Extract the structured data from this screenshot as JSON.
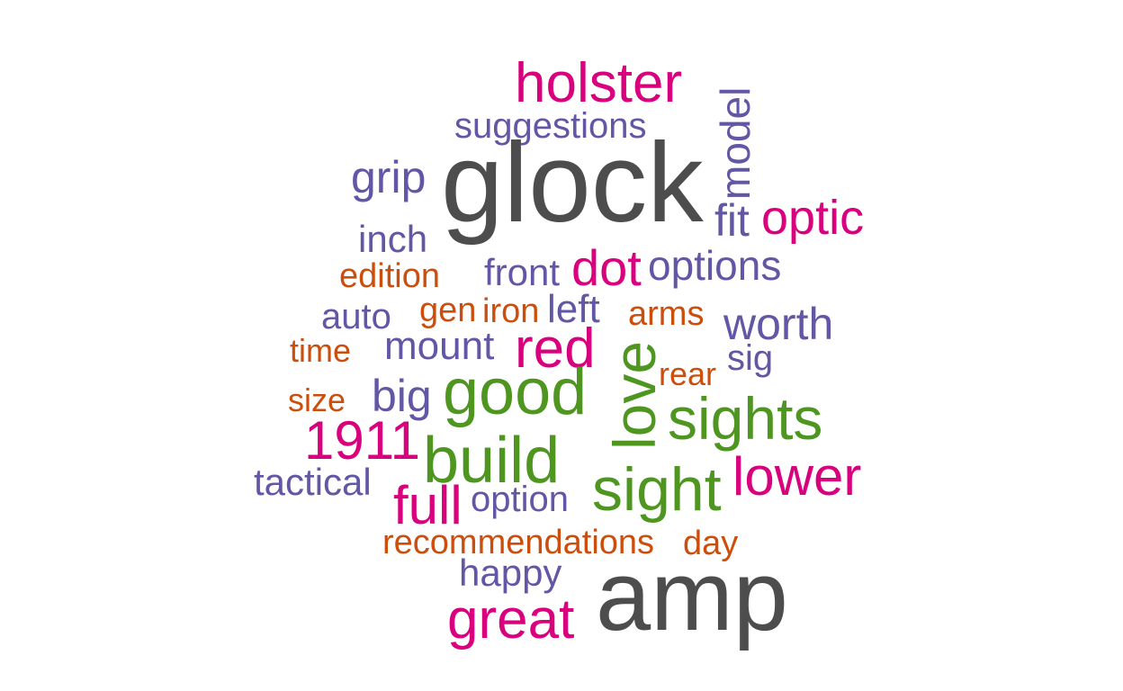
{
  "colors": {
    "gray": "#4d4d4d",
    "magenta": "#d9007e",
    "purple": "#6257a5",
    "orange": "#cc4e0c",
    "green": "#4e9620"
  },
  "words": {
    "holster": {
      "text": "holster",
      "color": "#d9007e"
    },
    "model": {
      "text": "model",
      "color": "#6257a5"
    },
    "suggestions": {
      "text": "suggestions",
      "color": "#6257a5"
    },
    "glock": {
      "text": "glock",
      "color": "#4d4d4d"
    },
    "grip": {
      "text": "grip",
      "color": "#6257a5"
    },
    "fit": {
      "text": "fit",
      "color": "#6257a5"
    },
    "optic": {
      "text": "optic",
      "color": "#d9007e"
    },
    "inch": {
      "text": "inch",
      "color": "#6257a5"
    },
    "edition": {
      "text": "edition",
      "color": "#cc4e0c"
    },
    "front": {
      "text": "front",
      "color": "#6257a5"
    },
    "dot": {
      "text": "dot",
      "color": "#d9007e"
    },
    "options": {
      "text": "options",
      "color": "#6257a5"
    },
    "auto": {
      "text": "auto",
      "color": "#6257a5"
    },
    "gen": {
      "text": "gen",
      "color": "#cc4e0c"
    },
    "iron": {
      "text": "iron",
      "color": "#cc4e0c"
    },
    "left": {
      "text": "left",
      "color": "#6257a5"
    },
    "arms": {
      "text": "arms",
      "color": "#cc4e0c"
    },
    "worth": {
      "text": "worth",
      "color": "#6257a5"
    },
    "time": {
      "text": "time",
      "color": "#cc4e0c"
    },
    "mount": {
      "text": "mount",
      "color": "#6257a5"
    },
    "red": {
      "text": "red",
      "color": "#d9007e"
    },
    "love": {
      "text": "love",
      "color": "#4e9620"
    },
    "sig": {
      "text": "sig",
      "color": "#6257a5"
    },
    "rear": {
      "text": "rear",
      "color": "#cc4e0c"
    },
    "size": {
      "text": "size",
      "color": "#cc4e0c"
    },
    "big": {
      "text": "big",
      "color": "#6257a5"
    },
    "good": {
      "text": "good",
      "color": "#4e9620"
    },
    "sights": {
      "text": "sights",
      "color": "#4e9620"
    },
    "n1911": {
      "text": "1911",
      "color": "#d9007e"
    },
    "build": {
      "text": "build",
      "color": "#4e9620"
    },
    "lower": {
      "text": "lower",
      "color": "#d9007e"
    },
    "tactical": {
      "text": "tactical",
      "color": "#6257a5"
    },
    "full": {
      "text": "full",
      "color": "#d9007e"
    },
    "option": {
      "text": "option",
      "color": "#6257a5"
    },
    "sight": {
      "text": "sight",
      "color": "#4e9620"
    },
    "recommendations": {
      "text": "recommendations",
      "color": "#cc4e0c"
    },
    "day": {
      "text": "day",
      "color": "#cc4e0c"
    },
    "happy": {
      "text": "happy",
      "color": "#6257a5"
    },
    "amp": {
      "text": "amp",
      "color": "#4d4d4d"
    },
    "great": {
      "text": "great",
      "color": "#d9007e"
    }
  }
}
